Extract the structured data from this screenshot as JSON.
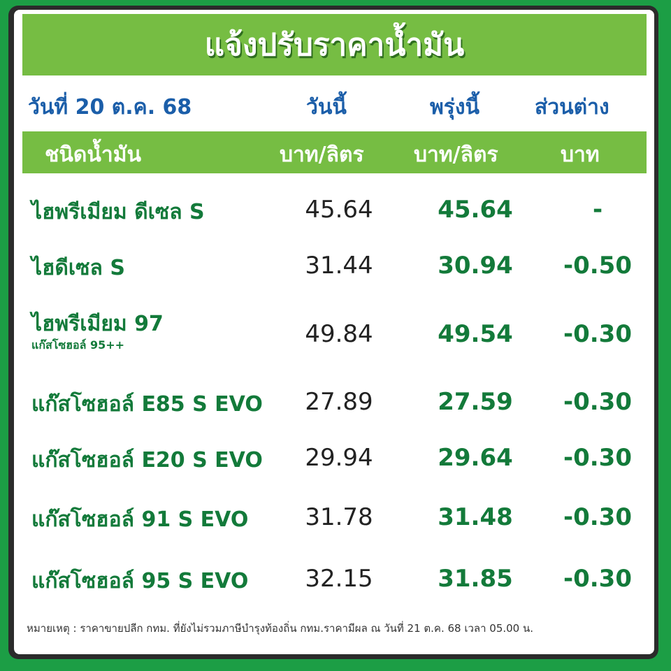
{
  "title": "แจ้งปรับราคาน้ำมัน",
  "date": "วันที่ 20 ต.ค. 68",
  "col_today": "วันนี้",
  "col_tomorrow": "พรุ่งนี้",
  "col_diff": "ส่วนต่าง",
  "header": {
    "type": "ชนิดน้ำมัน",
    "today_unit": "บาท/ลิตร",
    "tomorrow_unit": "บาท/ลิตร",
    "diff_unit": "บาท"
  },
  "rows": [
    {
      "name": "ไฮพรีเมียม ดีเซล S",
      "sub": "",
      "today": "45.64",
      "tomorrow": "45.64",
      "diff": "-"
    },
    {
      "name": "ไฮดีเซล S",
      "sub": "",
      "today": "31.44",
      "tomorrow": "30.94",
      "diff": "-0.50"
    },
    {
      "name": "ไฮพรีเมียม 97",
      "sub": "แก๊สโซฮอล์ 95++",
      "today": "49.84",
      "tomorrow": "49.54",
      "diff": "-0.30"
    },
    {
      "name": "แก๊สโซฮอล์ E85 S EVO",
      "sub": "",
      "today": "27.89",
      "tomorrow": "27.59",
      "diff": "-0.30"
    },
    {
      "name": "แก๊สโซฮอล์ E20 S EVO",
      "sub": "",
      "today": "29.94",
      "tomorrow": "29.64",
      "diff": "-0.30"
    },
    {
      "name": "แก๊สโซฮอล์ 91 S EVO",
      "sub": "",
      "today": "31.78",
      "tomorrow": "31.48",
      "diff": "-0.30"
    },
    {
      "name": "แก๊สโซฮอล์ 95 S EVO",
      "sub": "",
      "today": "32.15",
      "tomorrow": "31.85",
      "diff": "-0.30"
    }
  ],
  "note": "หมายเหตุ :  ราคาขายปลีก กทม. ที่ยังไม่รวมภาษีบำรุงท้องถิ่น  กทม.ราคามีผล ณ วันที่ 21 ต.ค. 68 เวลา 05.00 น.",
  "colors": {
    "green_bar": "#76bd43",
    "blue_text": "#1b5ea9",
    "green_text": "#137a3a",
    "background": "#1c9e45"
  }
}
